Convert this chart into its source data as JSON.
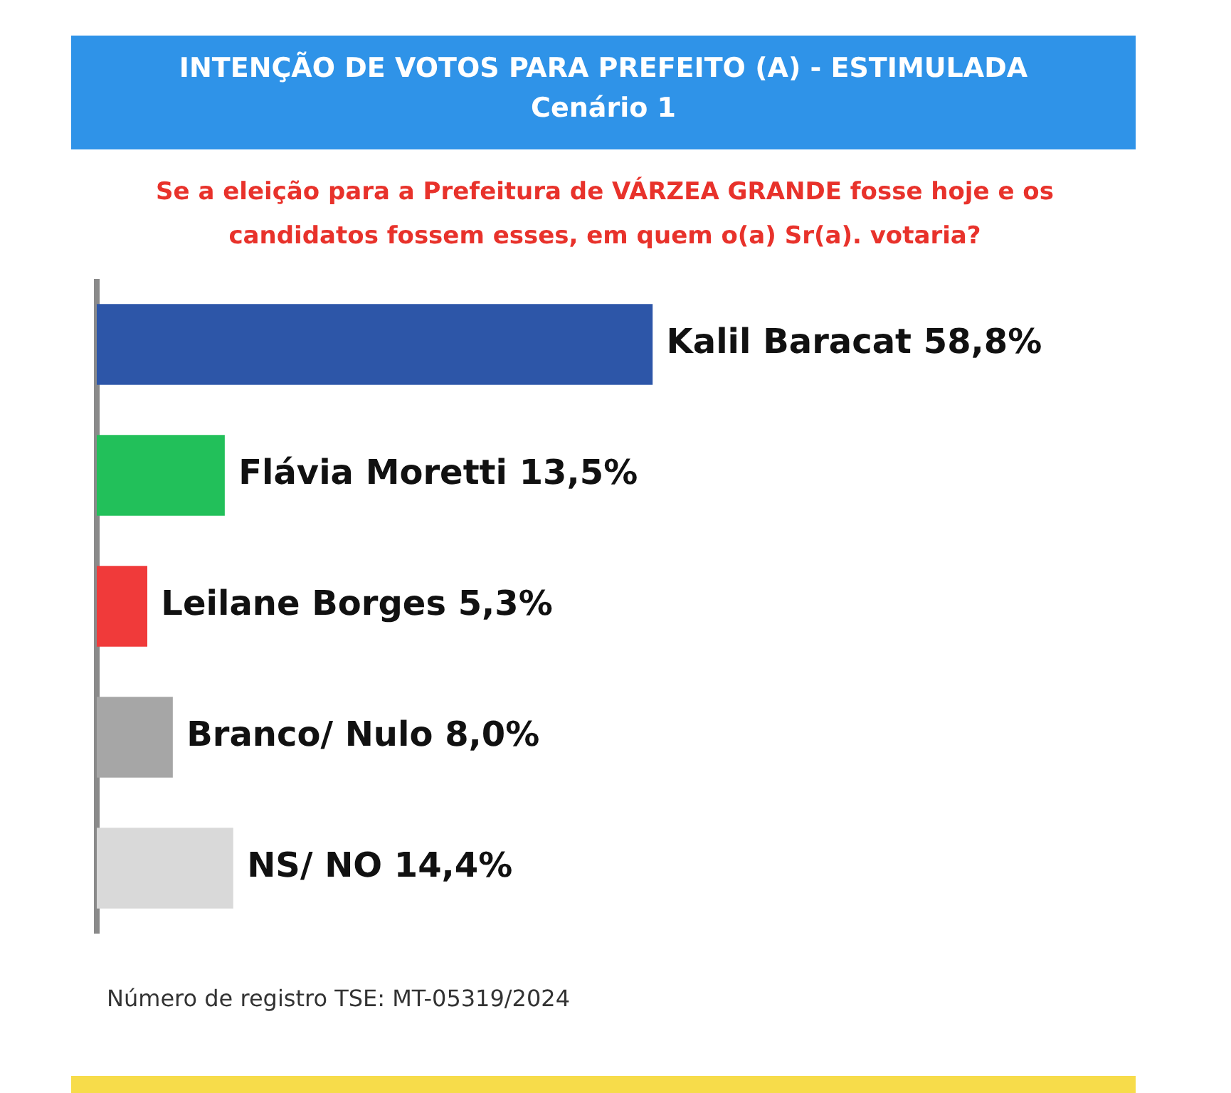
{
  "chart_data": {
    "type": "bar",
    "orientation": "horizontal",
    "title": "INTENÇÃO DE VOTOS PARA PREFEITO (A) - ESTIMULADA",
    "subtitle": "Cenário 1",
    "annotations": [
      "Se a eleição para a Prefeitura de VÁRZEA GRANDE fosse hoje e os candidatos fossem esses, em quem o(a) Sr(a). votaria?",
      "Número de registro TSE: MT-05319/2024"
    ],
    "categories": [
      null,
      null,
      null,
      null,
      null
    ],
    "values": [
      58.8,
      13.5,
      5.3,
      8.0,
      14.4
    ],
    "colors": [
      "#2d56a8",
      "#22c05a",
      "#f03a3a",
      "#a6a6a6",
      "#d9d9d9"
    ],
    "value_labels": [
      "Kalil Baracat 58,8%",
      "Flávia Moretti 13,5%",
      "Leilane Borges 5,3%",
      "Branco/ Nulo 8,0%",
      "NS/ NO 14,4%"
    ],
    "tick_labels": false,
    "legend": false
  }
}
